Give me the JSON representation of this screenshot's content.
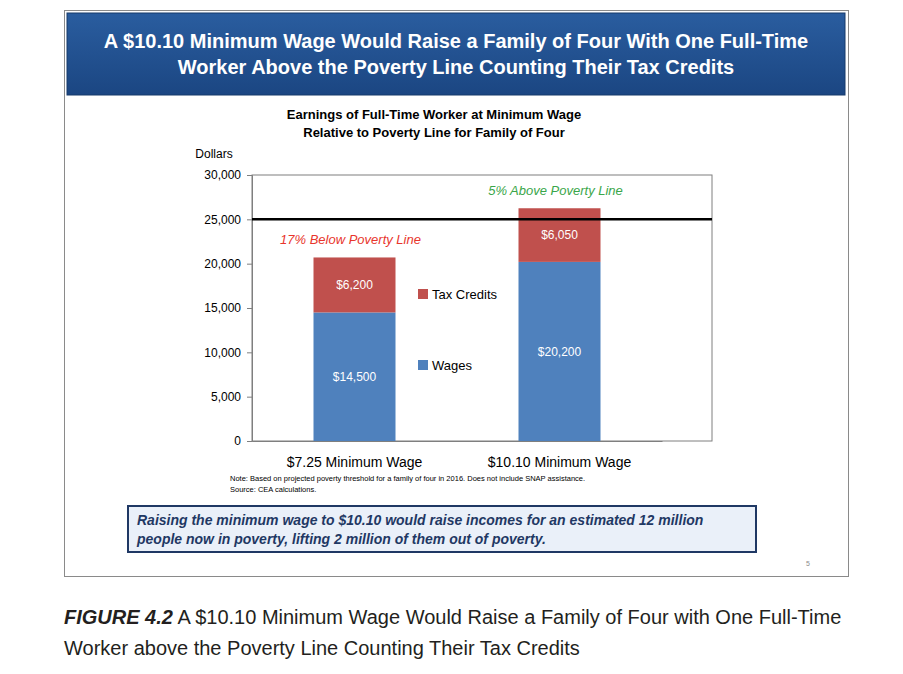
{
  "chart_data": {
    "type": "bar",
    "stacked": true,
    "title": "A $10.10 Minimum Wage Would Raise a Family of Four With One Full-Time Worker Above the Poverty Line Counting Their Tax Credits",
    "subtitle": "Earnings of Full-Time Worker at Minimum Wage Relative to Poverty Line for Family of Four",
    "y_label": "Dollars",
    "categories": [
      "$7.25 Minimum Wage",
      "$10.10 Minimum Wage"
    ],
    "series": [
      {
        "name": "Wages",
        "color": "#4f81bd",
        "values": [
          14500,
          20200
        ],
        "value_labels": [
          "$14,500",
          "$20,200"
        ]
      },
      {
        "name": "Tax Credits",
        "color": "#c0504d",
        "values": [
          6200,
          6050
        ],
        "value_labels": [
          "$6,200",
          "$6,050"
        ]
      }
    ],
    "ylim": [
      0,
      30000
    ],
    "yticks": [
      0,
      {
        "value": 5000,
        "label": "5,000"
      },
      {
        "value": 10000,
        "label": "10,000"
      },
      {
        "value": 15000,
        "label": "15,000"
      },
      {
        "value": 20000,
        "label": "20,000"
      },
      {
        "value": 25000,
        "label": "25,000"
      },
      {
        "value": 30000,
        "label": "30,000"
      }
    ],
    "grid": false,
    "legend": "center",
    "data_labels": true,
    "poverty_line": 25000,
    "annotations": [
      {
        "text": "17% Below Poverty Line",
        "color": "#e8352c"
      },
      {
        "text": "5% Above Poverty Line",
        "color": "#3aa64a"
      }
    ],
    "note": "Note: Based on projected poverty threshold for a family of four in 2016. Does not include SNAP assistance.",
    "source": "Source: CEA calculations.",
    "callout": "Raising the minimum wage to $10.10 would raise incomes for an estimated 12 million people now in poverty, lifting 2 million of them out of poverty.",
    "page_number": "5"
  },
  "caption": {
    "label": "FIGURE 4.2",
    "text": "A $10.10 Minimum Wage Would Raise a Family of Four with One Full-Time Worker above the Poverty Line Counting Their Tax Credits"
  }
}
